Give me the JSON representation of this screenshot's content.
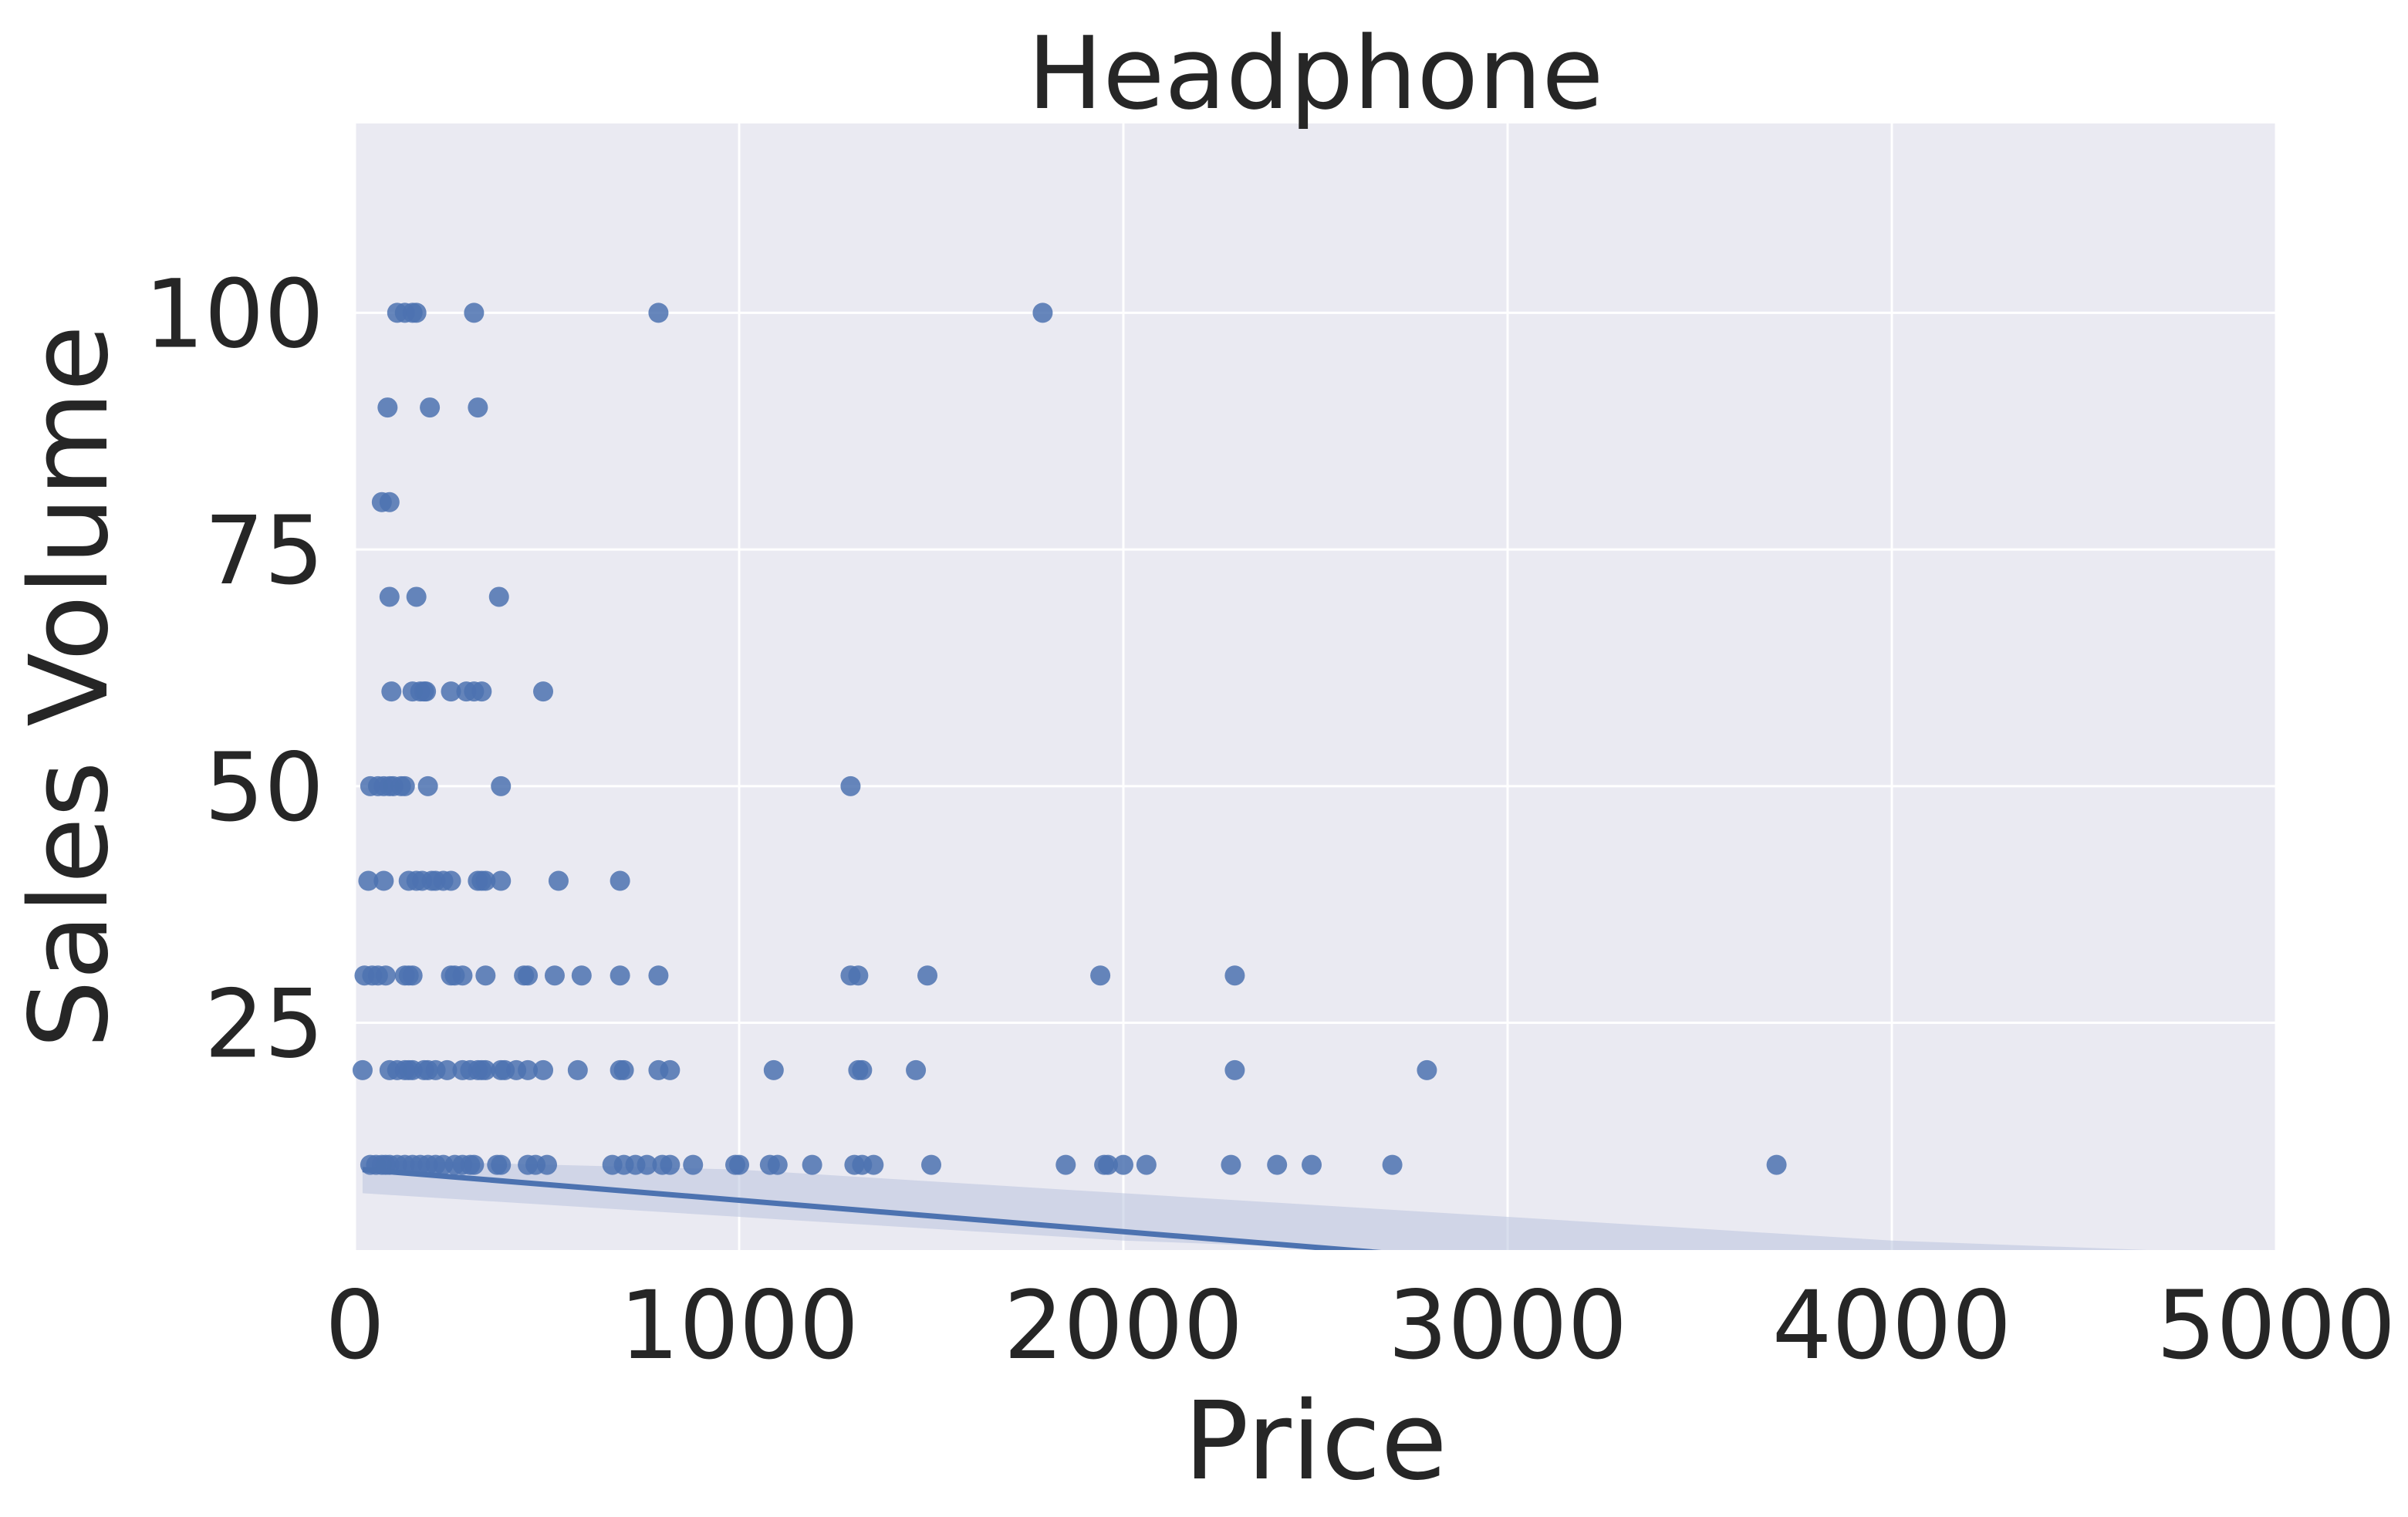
{
  "chart_data": {
    "type": "scatter",
    "title": "Headphone",
    "xlabel": "Price",
    "ylabel": "Sales Volume",
    "xlim": [
      0,
      5000
    ],
    "ylim": [
      1,
      120
    ],
    "xticks": [
      0,
      1000,
      2000,
      3000,
      4000,
      5000
    ],
    "yticks": [
      25,
      50,
      75,
      100
    ],
    "grid": true,
    "colors": {
      "background": "#EAEAF2",
      "grid": "#FFFFFF",
      "points": "#4C72B0",
      "band": "#B9C3DE"
    },
    "regression": {
      "x": [
        20,
        5000
      ],
      "y": [
        9.5,
        -7
      ],
      "band_upper": [
        [
          20,
          10.5
        ],
        [
          1000,
          9.5
        ],
        [
          2000,
          7
        ],
        [
          3000,
          4.5
        ],
        [
          4000,
          2
        ],
        [
          5000,
          0.5
        ]
      ],
      "band_lower": [
        [
          20,
          7
        ],
        [
          1000,
          4.5
        ],
        [
          2000,
          2
        ],
        [
          3000,
          0.5
        ],
        [
          4000,
          0
        ],
        [
          5000,
          0
        ]
      ]
    },
    "series": [
      {
        "name": "Headphone",
        "x": [
          110,
          130,
          150,
          160,
          310,
          790,
          1790,
          85,
          195,
          320,
          70,
          90,
          90,
          160,
          375,
          95,
          150,
          170,
          180,
          185,
          250,
          290,
          310,
          330,
          490,
          40,
          60,
          75,
          90,
          100,
          120,
          130,
          190,
          380,
          1290,
          35,
          75,
          140,
          160,
          175,
          200,
          210,
          230,
          250,
          320,
          330,
          340,
          380,
          530,
          690,
          25,
          45,
          60,
          80,
          130,
          140,
          150,
          250,
          260,
          280,
          340,
          440,
          450,
          520,
          590,
          690,
          790,
          1290,
          1310,
          1490,
          1940,
          2290,
          20,
          90,
          110,
          130,
          140,
          150,
          180,
          190,
          210,
          240,
          280,
          300,
          320,
          330,
          340,
          380,
          390,
          420,
          450,
          490,
          580,
          690,
          700,
          790,
          820,
          1090,
          1310,
          1320,
          1460,
          2290,
          2790,
          40,
          55,
          70,
          80,
          90,
          110,
          130,
          150,
          170,
          190,
          210,
          230,
          260,
          280,
          300,
          310,
          370,
          380,
          450,
          470,
          500,
          670,
          700,
          730,
          760,
          800,
          820,
          880,
          990,
          1000,
          1080,
          1100,
          1190,
          1300,
          1320,
          1350,
          1500,
          1850,
          1950,
          1960,
          2000,
          2060,
          2280,
          2400,
          2490,
          2700,
          3700
        ],
        "y": [
          100,
          100,
          100,
          100,
          100,
          100,
          100,
          90,
          90,
          90,
          80,
          80,
          70,
          70,
          70,
          60,
          60,
          60,
          60,
          60,
          60,
          60,
          60,
          60,
          60,
          50,
          50,
          50,
          50,
          50,
          50,
          50,
          50,
          50,
          50,
          40,
          40,
          40,
          40,
          40,
          40,
          40,
          40,
          40,
          40,
          40,
          40,
          40,
          40,
          40,
          30,
          30,
          30,
          30,
          30,
          30,
          30,
          30,
          30,
          30,
          30,
          30,
          30,
          30,
          30,
          30,
          30,
          30,
          30,
          30,
          30,
          30,
          20,
          20,
          20,
          20,
          20,
          20,
          20,
          20,
          20,
          20,
          20,
          20,
          20,
          20,
          20,
          20,
          20,
          20,
          20,
          20,
          20,
          20,
          20,
          20,
          20,
          20,
          20,
          20,
          20,
          20,
          20,
          10,
          10,
          10,
          10,
          10,
          10,
          10,
          10,
          10,
          10,
          10,
          10,
          10,
          10,
          10,
          10,
          10,
          10,
          10,
          10,
          10,
          10,
          10,
          10,
          10,
          10,
          10,
          10,
          10,
          10,
          10,
          10,
          10,
          10,
          10,
          10,
          10,
          10,
          10,
          10,
          10,
          10,
          10,
          10,
          10,
          10,
          10
        ]
      }
    ]
  }
}
